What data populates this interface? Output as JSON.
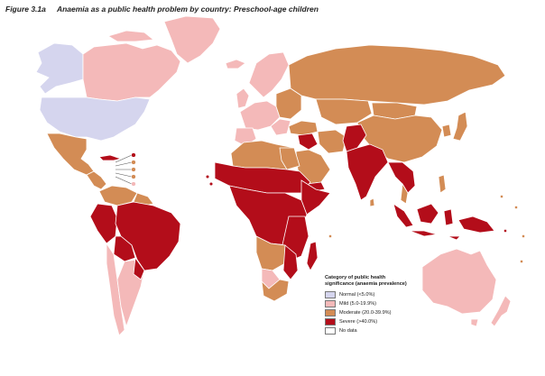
{
  "figure": {
    "number": "Figure 3.1a",
    "title": "Anaemia as a public health problem by country: Preschool-age children"
  },
  "legend": {
    "title_line1": "Category of public health",
    "title_line2": "significance (anaemia prevalence)",
    "items": [
      {
        "label": "Normal (<5.0%)",
        "color": "#d5d5ee"
      },
      {
        "label": "Mild (5.0-19.9%)",
        "color": "#f4b9b9"
      },
      {
        "label": "Moderate (20.0-39.9%)",
        "color": "#d38c55"
      },
      {
        "label": "Severe (>40.0%)",
        "color": "#b30d1a"
      },
      {
        "label": "No data",
        "color": "#ffffff"
      }
    ]
  }
}
